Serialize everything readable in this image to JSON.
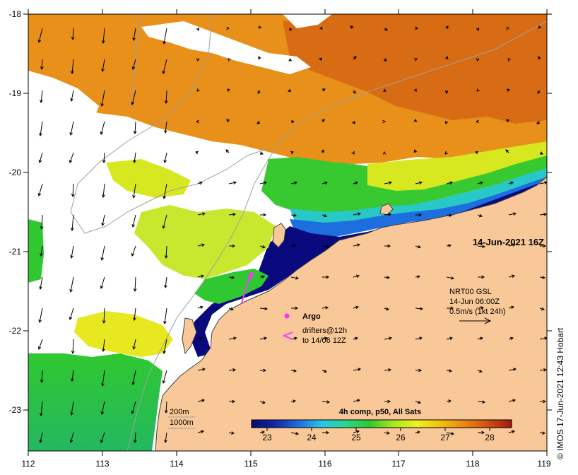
{
  "map": {
    "date_label": "14-Jun-2021 16Z",
    "credit": "© IMOS 17-Jun-2021 12:43 Hobart",
    "lon_ticks": [
      "112",
      "113",
      "114",
      "115",
      "116",
      "117",
      "118",
      "119"
    ],
    "lat_ticks": [
      "-18",
      "-19",
      "-20",
      "-21",
      "-22",
      "-23"
    ],
    "legend": {
      "argo_label": "Argo",
      "drifters_line1": "drifters@12h",
      "drifters_line2": "to 14/06 12Z",
      "current_line1": "NRT00 GSL",
      "current_line2": "14-Jun 06:00Z",
      "current_line3": "0.5m/s (1kt 24h)"
    },
    "isobaths": {
      "shallow": "200m",
      "deep": "1000m"
    },
    "colorbar": {
      "title": "4h comp, p50, All Sats",
      "ticks": [
        "23",
        "24",
        "25",
        "26",
        "27",
        "28"
      ],
      "stops": [
        "#0a0a6e",
        "#1028a8",
        "#1e6ee0",
        "#28c8e8",
        "#24d888",
        "#30c830",
        "#a8e820",
        "#f0f020",
        "#f0c010",
        "#e88810",
        "#d05010",
        "#a01810"
      ]
    },
    "colors": {
      "land": "#f9c898",
      "cloud": "#ffffff",
      "coastline": "#404040",
      "argo": "#ff33ff",
      "drifter": "#ff33ff"
    }
  }
}
